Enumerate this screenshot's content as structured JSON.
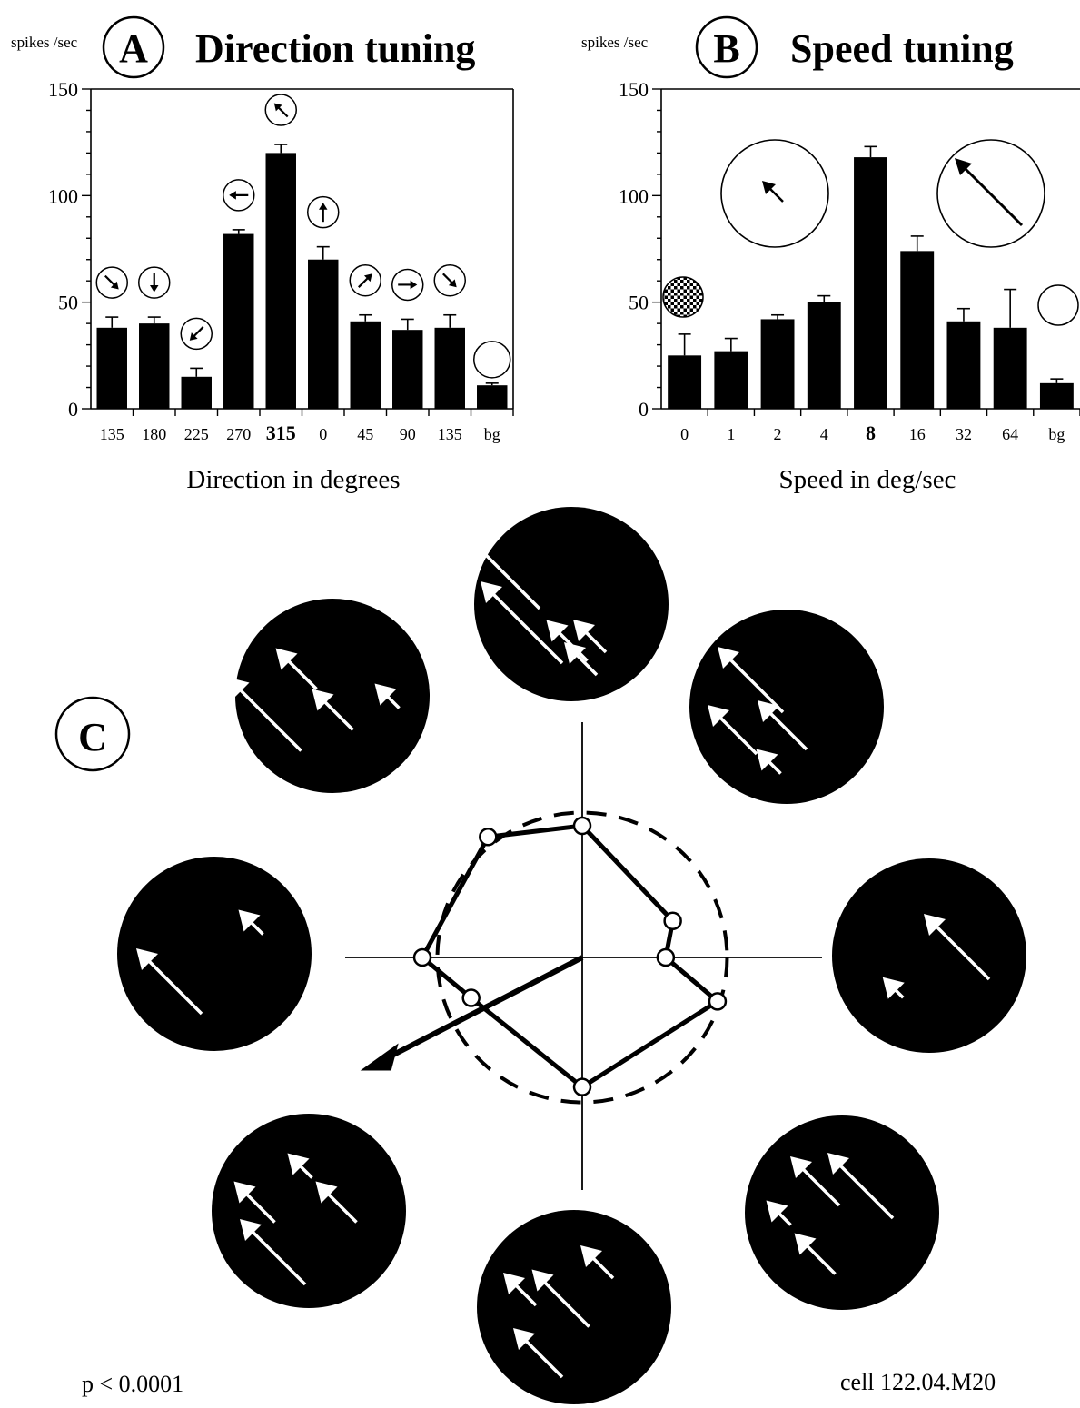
{
  "chart_data": [
    {
      "panel": "A",
      "type": "bar",
      "title": "Direction tuning",
      "ylabel": "spikes /sec",
      "xlabel": "Direction in degrees",
      "ylim": [
        0,
        150
      ],
      "yticks": [
        "0",
        "50",
        "100",
        "150"
      ],
      "categories": [
        "135",
        "180",
        "225",
        "270",
        "315",
        "0",
        "45",
        "90",
        "135",
        "bg"
      ],
      "highlight_category": "315",
      "values": [
        38,
        40,
        15,
        82,
        120,
        70,
        41,
        37,
        38,
        11
      ],
      "errors": [
        5,
        3,
        4,
        2,
        4,
        6,
        3,
        5,
        6,
        1
      ],
      "stimulus_icons": [
        "arrow-icon-135",
        "arrow-icon-180",
        "arrow-icon-225",
        "arrow-icon-270",
        "arrow-icon-315",
        "arrow-icon-0",
        "arrow-icon-45",
        "arrow-icon-90",
        "arrow-icon-135",
        "empty-circle-icon"
      ]
    },
    {
      "panel": "B",
      "type": "bar",
      "title": "Speed tuning",
      "ylabel": "spikes /sec",
      "xlabel": "Speed in deg/sec",
      "ylim": [
        0,
        150
      ],
      "yticks": [
        "0",
        "50",
        "100",
        "150"
      ],
      "categories": [
        "0",
        "1",
        "2",
        "4",
        "8",
        "16",
        "32",
        "64",
        "bg"
      ],
      "highlight_category": "8",
      "values": [
        25,
        27,
        42,
        50,
        118,
        74,
        41,
        38,
        12
      ],
      "errors": [
        10,
        6,
        2,
        3,
        5,
        7,
        6,
        18,
        2
      ],
      "stimulus_icons": [
        "dot-texture-icon",
        "slow-arrow-icon",
        "fast-arrow-icon",
        "empty-circle-icon"
      ]
    },
    {
      "panel": "C",
      "type": "polar",
      "annotation_left": "p < 0.0001",
      "annotation_right": "cell 122.04.M20",
      "points_deg": [
        90,
        45,
        0,
        315,
        270,
        225,
        180,
        135
      ],
      "radius_relative": [
        1.0,
        0.78,
        0.72,
        1.0,
        1.2,
        1.02,
        1.48,
        1.32
      ],
      "reference_circle_relative": 1.1,
      "preferred_direction_deg": 207,
      "preferred_vector_relative": 1.55,
      "stimulus_icons": [
        "dot-field-icon",
        "dot-field-icon",
        "dot-field-icon",
        "dot-field-icon",
        "dot-field-icon",
        "dot-field-icon",
        "dot-field-icon",
        "dot-field-icon"
      ]
    }
  ],
  "colors": {
    "ink": "#000000",
    "paper": "#ffffff"
  }
}
